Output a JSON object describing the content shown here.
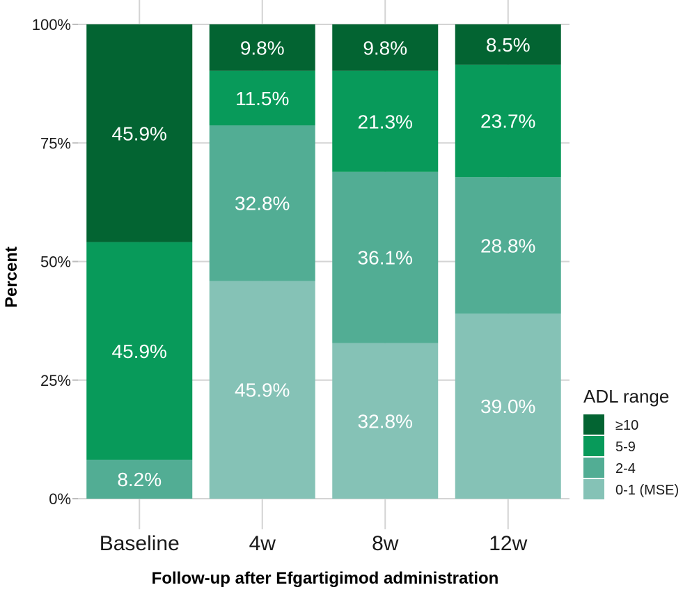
{
  "chart_data": {
    "type": "bar",
    "stacked": true,
    "categories": [
      "Baseline",
      "4w",
      "8w",
      "12w"
    ],
    "series": [
      {
        "name": "0-1 (MSE)",
        "color": "#85c2b6",
        "values": [
          0,
          45.9,
          32.8,
          39.0
        ],
        "labels": [
          "",
          "45.9%",
          "32.8%",
          "39.0%"
        ]
      },
      {
        "name": "2-4",
        "color": "#52ad94",
        "values": [
          8.2,
          32.8,
          36.1,
          28.8
        ],
        "labels": [
          "8.2%",
          "32.8%",
          "36.1%",
          "28.8%"
        ]
      },
      {
        "name": "5-9",
        "color": "#089a5a",
        "values": [
          45.9,
          11.5,
          21.3,
          23.7
        ],
        "labels": [
          "45.9%",
          "11.5%",
          "21.3%",
          "23.7%"
        ]
      },
      {
        "name": "≥10",
        "color": "#036432",
        "values": [
          45.9,
          9.8,
          9.8,
          8.5
        ],
        "labels": [
          "45.9%",
          "9.8%",
          "9.8%",
          "8.5%"
        ]
      }
    ],
    "xlabel": "Follow-up after Efgartigimod administration",
    "ylabel": "Percent",
    "ylim": [
      0,
      100
    ],
    "yticks": [
      "0%",
      "25%",
      "50%",
      "75%",
      "100%"
    ],
    "ytick_values": [
      0,
      25,
      50,
      75,
      100
    ],
    "legend": {
      "title": "ADL range",
      "position": "right",
      "entries": [
        "≥10",
        "5-9",
        "2-4",
        "0-1 (MSE)"
      ]
    },
    "grid": true,
    "grid_color": "#d4d4d4"
  }
}
